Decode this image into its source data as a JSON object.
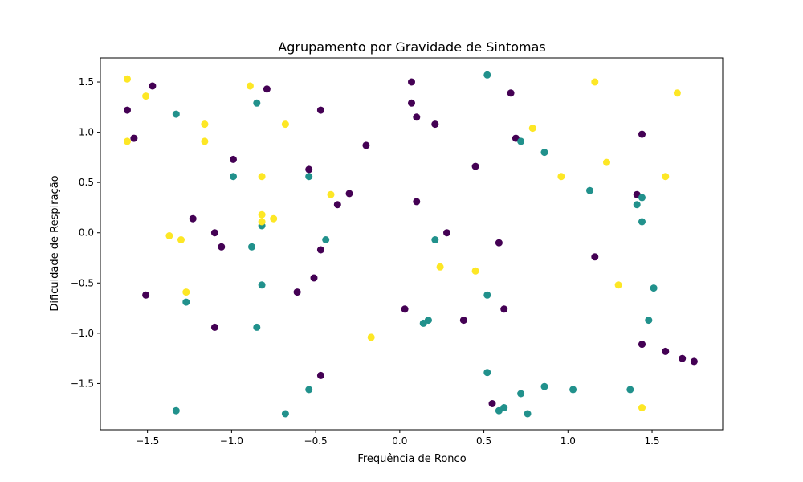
{
  "chart_data": {
    "type": "scatter",
    "title": "Agrupamento por Gravidade de Sintomas",
    "xlabel": "Frequência de Ronco",
    "ylabel": "Dificuldade de Respiração",
    "xlim": [
      -1.78,
      1.92
    ],
    "ylim": [
      -1.96,
      1.74
    ],
    "xticks": [
      -1.5,
      -1.0,
      -0.5,
      0.0,
      0.5,
      1.0,
      1.5
    ],
    "yticks": [
      -1.5,
      -1.0,
      -0.5,
      0.0,
      0.5,
      1.0,
      1.5
    ],
    "xtick_labels": [
      "−1.5",
      "−1.0",
      "−0.5",
      "0.0",
      "0.5",
      "1.0",
      "1.5"
    ],
    "ytick_labels": [
      "−1.5",
      "−1.0",
      "−0.5",
      "0.0",
      "0.5",
      "1.0",
      "1.5"
    ],
    "grid": false,
    "legend": "none",
    "colors": [
      "#440154",
      "#21918c",
      "#fde725"
    ],
    "series": [
      {
        "color": "#440154",
        "points": [
          [
            -1.47,
            1.46
          ],
          [
            -1.62,
            1.22
          ],
          [
            -1.58,
            0.94
          ],
          [
            -0.79,
            1.43
          ],
          [
            -0.47,
            1.22
          ],
          [
            -0.99,
            0.73
          ],
          [
            -0.54,
            0.63
          ],
          [
            -1.23,
            0.14
          ],
          [
            -1.1,
            0.0
          ],
          [
            -1.06,
            -0.14
          ],
          [
            -0.47,
            -0.17
          ],
          [
            -0.51,
            -0.45
          ],
          [
            -0.61,
            -0.59
          ],
          [
            -1.51,
            -0.62
          ],
          [
            -1.1,
            -0.94
          ],
          [
            -0.47,
            -1.42
          ],
          [
            -0.3,
            0.39
          ],
          [
            -0.37,
            0.28
          ],
          [
            -0.2,
            0.87
          ],
          [
            0.07,
            1.5
          ],
          [
            0.07,
            1.29
          ],
          [
            0.1,
            1.15
          ],
          [
            0.21,
            1.08
          ],
          [
            0.1,
            0.31
          ],
          [
            0.28,
            0.0
          ],
          [
            0.03,
            -0.76
          ],
          [
            0.38,
            -0.87
          ],
          [
            0.45,
            0.66
          ],
          [
            0.59,
            -0.1
          ],
          [
            0.62,
            -0.76
          ],
          [
            0.55,
            -1.7
          ],
          [
            0.66,
            1.39
          ],
          [
            0.69,
            0.94
          ],
          [
            1.16,
            -0.24
          ],
          [
            1.44,
            0.98
          ],
          [
            1.41,
            0.38
          ],
          [
            1.44,
            -1.11
          ],
          [
            1.58,
            -1.18
          ],
          [
            1.68,
            -1.25
          ],
          [
            1.75,
            -1.28
          ]
        ]
      },
      {
        "color": "#21918c",
        "points": [
          [
            -1.33,
            1.18
          ],
          [
            -0.85,
            1.29
          ],
          [
            -0.99,
            0.56
          ],
          [
            -0.54,
            0.56
          ],
          [
            -0.82,
            0.07
          ],
          [
            -0.88,
            -0.14
          ],
          [
            -0.44,
            -0.07
          ],
          [
            -0.82,
            -0.52
          ],
          [
            -1.27,
            -0.69
          ],
          [
            -0.85,
            -0.94
          ],
          [
            -0.54,
            -1.56
          ],
          [
            -1.33,
            -1.77
          ],
          [
            -0.68,
            -1.8
          ],
          [
            0.21,
            -0.07
          ],
          [
            0.17,
            -0.87
          ],
          [
            0.14,
            -0.9
          ],
          [
            0.52,
            1.57
          ],
          [
            0.52,
            -0.62
          ],
          [
            0.52,
            -1.39
          ],
          [
            0.59,
            -1.77
          ],
          [
            0.62,
            -1.74
          ],
          [
            0.72,
            0.91
          ],
          [
            0.72,
            -1.6
          ],
          [
            0.76,
            -1.8
          ],
          [
            0.86,
            0.8
          ],
          [
            0.86,
            -1.53
          ],
          [
            1.03,
            -1.56
          ],
          [
            1.13,
            0.42
          ],
          [
            1.37,
            -1.56
          ],
          [
            1.41,
            0.28
          ],
          [
            1.44,
            0.35
          ],
          [
            1.44,
            0.11
          ],
          [
            1.48,
            -0.87
          ],
          [
            1.51,
            -0.55
          ]
        ]
      },
      {
        "color": "#fde725",
        "points": [
          [
            -1.62,
            1.53
          ],
          [
            -1.51,
            1.36
          ],
          [
            -1.62,
            0.91
          ],
          [
            -0.89,
            1.46
          ],
          [
            -1.16,
            1.08
          ],
          [
            -1.16,
            0.91
          ],
          [
            -0.68,
            1.08
          ],
          [
            -0.82,
            0.56
          ],
          [
            -0.41,
            0.38
          ],
          [
            -0.82,
            0.18
          ],
          [
            -0.82,
            0.11
          ],
          [
            -0.75,
            0.14
          ],
          [
            -1.37,
            -0.03
          ],
          [
            -1.3,
            -0.07
          ],
          [
            -1.27,
            -0.59
          ],
          [
            -0.17,
            -1.04
          ],
          [
            0.24,
            -0.34
          ],
          [
            0.45,
            -0.38
          ],
          [
            0.79,
            1.04
          ],
          [
            0.96,
            0.56
          ],
          [
            1.16,
            1.5
          ],
          [
            1.23,
            0.7
          ],
          [
            1.3,
            -0.52
          ],
          [
            1.44,
            -1.74
          ],
          [
            1.58,
            0.56
          ],
          [
            1.65,
            1.39
          ]
        ]
      }
    ]
  }
}
